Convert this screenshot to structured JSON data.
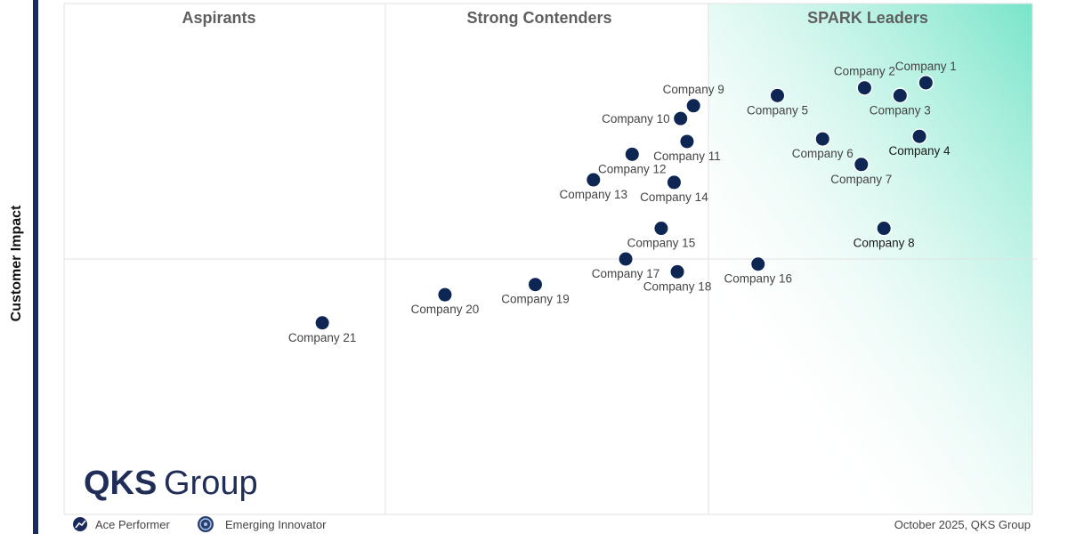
{
  "logo": {
    "brand": "QKS",
    "suffix": "Group"
  },
  "legend": {
    "ace_label": "Ace Performer",
    "emerging_label": "Emerging Innovator"
  },
  "footer": {
    "date_source": "October 2025, QKS Group"
  },
  "colors": {
    "marker": "#0e2654",
    "axis_bar": "#1b2a5c",
    "leader_gradient": "#5fe0bf",
    "grid": "#e2e2e2"
  },
  "chart_data": {
    "type": "scatter",
    "ylabel": "Customer Impact",
    "xlabel": "",
    "quadrants": [
      "Aspirants",
      "Strong Contenders",
      "SPARK Leaders"
    ],
    "xlim": [
      0,
      3
    ],
    "ylim": [
      0,
      2
    ],
    "grid": true,
    "points": [
      {
        "name": "Company 1",
        "x": 2.67,
        "y": 1.69,
        "label_pos": "above"
      },
      {
        "name": "Company 2",
        "x": 2.48,
        "y": 1.67,
        "label_pos": "above"
      },
      {
        "name": "Company 3",
        "x": 2.59,
        "y": 1.64,
        "label_pos": "below"
      },
      {
        "name": "Company 4",
        "x": 2.65,
        "y": 1.48,
        "label_pos": "below",
        "dark": true
      },
      {
        "name": "Company 5",
        "x": 2.21,
        "y": 1.64,
        "label_pos": "below"
      },
      {
        "name": "Company 6",
        "x": 2.35,
        "y": 1.47,
        "label_pos": "below"
      },
      {
        "name": "Company 7",
        "x": 2.47,
        "y": 1.37,
        "label_pos": "below"
      },
      {
        "name": "Company 8",
        "x": 2.54,
        "y": 1.12,
        "label_pos": "below",
        "dark": true
      },
      {
        "name": "Company 9",
        "x": 1.95,
        "y": 1.6,
        "label_pos": "above"
      },
      {
        "name": "Company 10",
        "x": 1.91,
        "y": 1.55,
        "label_pos": "left"
      },
      {
        "name": "Company 11",
        "x": 1.93,
        "y": 1.46,
        "label_pos": "below"
      },
      {
        "name": "Company 12",
        "x": 1.76,
        "y": 1.41,
        "label_pos": "below"
      },
      {
        "name": "Company 13",
        "x": 1.64,
        "y": 1.31,
        "label_pos": "below"
      },
      {
        "name": "Company 14",
        "x": 1.89,
        "y": 1.3,
        "label_pos": "below"
      },
      {
        "name": "Company 15",
        "x": 1.85,
        "y": 1.12,
        "label_pos": "below"
      },
      {
        "name": "Company 16",
        "x": 2.15,
        "y": 0.98,
        "label_pos": "below"
      },
      {
        "name": "Company 17",
        "x": 1.74,
        "y": 1.0,
        "label_pos": "below"
      },
      {
        "name": "Company 18",
        "x": 1.9,
        "y": 0.95,
        "label_pos": "below"
      },
      {
        "name": "Company 19",
        "x": 1.46,
        "y": 0.9,
        "label_pos": "below"
      },
      {
        "name": "Company 20",
        "x": 1.18,
        "y": 0.86,
        "label_pos": "below"
      },
      {
        "name": "Company 21",
        "x": 0.8,
        "y": 0.75,
        "label_pos": "below"
      }
    ]
  }
}
